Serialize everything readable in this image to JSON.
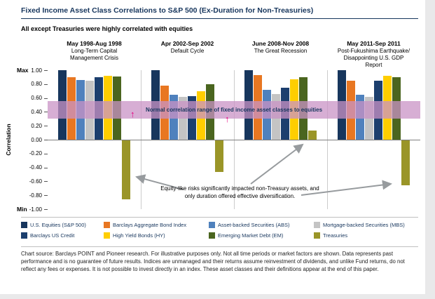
{
  "header": {
    "title": "Fixed Income Asset Class Correlations to S&P 500 (Ex-Duration for Non-Treasuries)",
    "subtitle": "All except Treasuries were highly correlated with equities"
  },
  "chart_data": {
    "type": "bar",
    "ylabel": "Correlation",
    "y_max_label": "Max",
    "y_min_label": "Min",
    "ylim": [
      -1.0,
      1.0
    ],
    "yticks": [
      "1.00",
      "0.80",
      "0.60",
      "0.40",
      "0.20",
      "0.00",
      "-0.20",
      "-0.40",
      "-0.60",
      "-0.80",
      "-1.00"
    ],
    "grid": false,
    "legend_position": "bottom",
    "series": [
      {
        "name": "U.S. Equities (S&P 500)",
        "color": "#17365d"
      },
      {
        "name": "Barclays Aggregate Bond Index",
        "color": "#e87722"
      },
      {
        "name": "Asset-backed Securities (ABS)",
        "color": "#4f81bd"
      },
      {
        "name": "Mortgage-backed Securities (MBS)",
        "color": "#c4c4c4"
      },
      {
        "name": "Barclays US Credit",
        "color": "#1c3f6e"
      },
      {
        "name": "High Yield Bonds (HY)",
        "color": "#ffce00"
      },
      {
        "name": "Emerging Market Debt (EM)",
        "color": "#4a651f"
      },
      {
        "name": "Treasuries",
        "color": "#9a9528"
      }
    ],
    "groups": [
      {
        "period": "May 1998-Aug 1998",
        "event": "Long-Term Capital Management Crisis",
        "values": [
          1.0,
          0.9,
          0.86,
          0.85,
          0.9,
          0.92,
          0.91,
          -0.85
        ]
      },
      {
        "period": "Apr 2002-Sep 2002",
        "event": "Default Cycle",
        "values": [
          1.0,
          0.78,
          0.65,
          0.62,
          0.63,
          0.7,
          0.8,
          -0.45
        ]
      },
      {
        "period": "June 2008-Nov 2008",
        "event": "The Great Recession",
        "values": [
          1.0,
          0.93,
          0.72,
          0.66,
          0.75,
          0.87,
          0.9,
          0.13
        ]
      },
      {
        "period": "May 2011-Sep 2011",
        "event": "Post-Fukushima Earthquake/ Disappointing U.S. GDP Report",
        "values": [
          1.0,
          0.85,
          0.65,
          0.62,
          0.85,
          0.92,
          0.9,
          -0.65
        ]
      }
    ],
    "band": {
      "label": "Normal correlation range of fixed income asset classes to equities",
      "from": 0.3,
      "to": 0.55,
      "color": "#c993c5"
    },
    "range_arrow_glyph": "↑",
    "annotation": "Equity-like risks significantly impacted non-Treasury assets, and only duration offered effective diversification."
  },
  "footer": "Chart source: Barclays POINT and Pioneer research. For illustrative purposes only. Not all time periods or market factors are shown. Data represents past performance and is no guarantee of future results. Indices are unmanaged and their returns assume reinvestment of dividends, and unlike Fund returns, do not reflect any fees or expenses. It is not possible to invest directly in an index. These asset classes and their definitions appear at the end of this paper."
}
